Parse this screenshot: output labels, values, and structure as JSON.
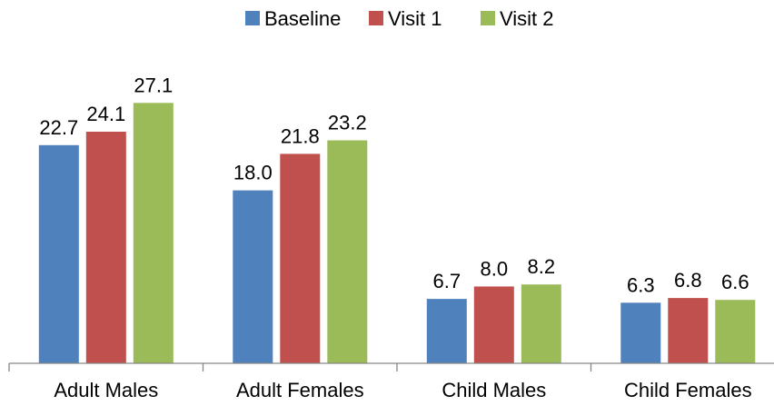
{
  "chart_data": {
    "type": "bar",
    "categories": [
      "Adult Males",
      "Adult Females",
      "Child Males",
      "Child Females"
    ],
    "series": [
      {
        "name": "Baseline",
        "values": [
          22.7,
          18.0,
          6.7,
          6.3
        ],
        "labels": [
          "22.7",
          "18.0",
          "6.7",
          "6.3"
        ],
        "color": "#4f81bd"
      },
      {
        "name": "Visit 1",
        "values": [
          24.1,
          21.8,
          8.0,
          6.8
        ],
        "labels": [
          "24.1",
          "21.8",
          "8.0",
          "6.8"
        ],
        "color": "#c0504d"
      },
      {
        "name": "Visit 2",
        "values": [
          27.1,
          23.2,
          8.2,
          6.6
        ],
        "labels": [
          "27.1",
          "23.2",
          "8.2",
          "6.6"
        ],
        "color": "#9bbb59"
      }
    ],
    "ylim": [
      0,
      30
    ],
    "grid": false,
    "legend_position": "top-center",
    "axis_color": "#868686"
  }
}
